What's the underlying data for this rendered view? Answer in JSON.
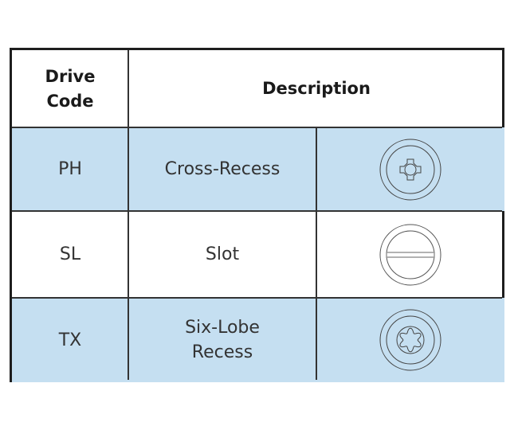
{
  "table": {
    "headers": {
      "code": "Drive\nCode",
      "code_line1": "Drive",
      "code_line2": "Code",
      "description": "Description"
    },
    "rows": [
      {
        "code": "PH",
        "description": "Cross-Recess",
        "icon": "phillips-drive-icon"
      },
      {
        "code": "SL",
        "description": "Slot",
        "icon": "slotted-drive-icon"
      },
      {
        "code": "TX",
        "description_line1": "Six-Lobe",
        "description_line2": "Recess",
        "icon": "torx-drive-icon"
      }
    ],
    "colors": {
      "row_highlight": "#c5dff1",
      "border": "#1e1e1e"
    }
  }
}
